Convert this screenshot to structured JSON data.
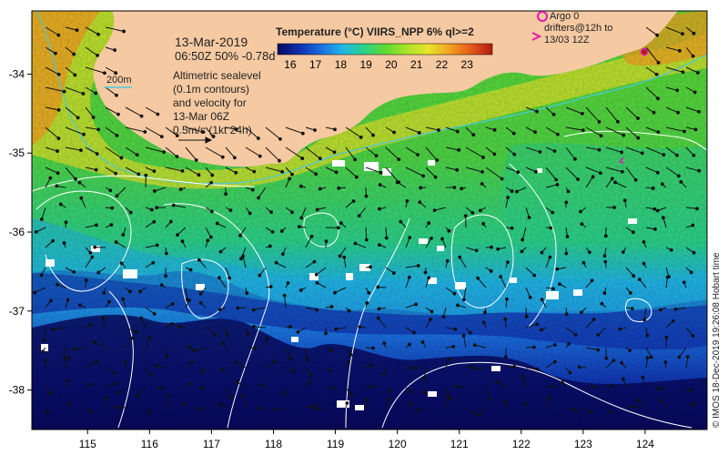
{
  "header": {
    "date": "13-Mar-2019",
    "time_line": "06:50Z  50% -0.78d"
  },
  "colorbar": {
    "title": "Temperature (°C) VIIRS_NPP 6% ql>=2",
    "ticks": [
      "16",
      "17",
      "18",
      "19",
      "20",
      "21",
      "22",
      "23"
    ],
    "min": 15.5,
    "max": 24,
    "colors": [
      "#08085e",
      "#0f2fae",
      "#1a6cde",
      "#20b5e8",
      "#2bd28a",
      "#5cd932",
      "#a9e32a",
      "#e7e52a",
      "#f3a322",
      "#e55a1a",
      "#b11b12"
    ]
  },
  "legend": {
    "sealevel_text": [
      "Altimetric sealevel",
      "(0.1m contours)",
      "and velocity for",
      "13-Mar 06Z",
      "0.5m/s (1kt 24h)"
    ],
    "isobath_label": "200m",
    "argo_label": "Argo 0",
    "drifters_label": [
      "drifters@12h to",
      "13/03 12Z"
    ]
  },
  "axes": {
    "x_ticks": [
      "115",
      "116",
      "117",
      "118",
      "119",
      "120",
      "121",
      "122",
      "123",
      "124"
    ],
    "y_ticks": [
      "-34",
      "-35",
      "-36",
      "-37",
      "-38"
    ],
    "lon_range": [
      114.1,
      125.0
    ],
    "lat_range": [
      -33.2,
      -38.5
    ]
  },
  "credit": "© IMOS 18-Dec-2019 19:26:08 Hobart time",
  "colors": {
    "land": "#f5c9a2",
    "contour": "#ffffff",
    "isobath": "#4cc9d8",
    "argo": "#e01bb3",
    "drifter": "#e01bb3",
    "arrow": "#111111"
  }
}
